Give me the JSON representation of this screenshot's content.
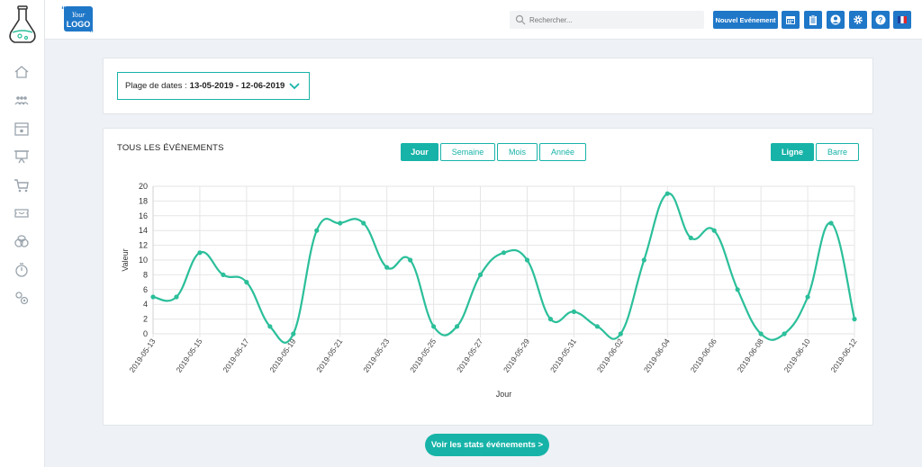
{
  "header": {
    "logo_text": "Your LOGO",
    "search_placeholder": "Rechercher...",
    "new_event_label": "Nouvel Evénement"
  },
  "icons": {
    "sidebar": [
      "home-icon",
      "users-icon",
      "calendar-star-icon",
      "presentation-icon",
      "cart-icon",
      "ticket-icon",
      "coins-icon",
      "stopwatch-icon",
      "settings-users-icon"
    ],
    "header": [
      "calendar-icon",
      "clipboard-icon",
      "user-circle-icon",
      "gear-icon",
      "help-icon",
      "flag-fr-icon"
    ]
  },
  "filters": {
    "date_label": "Plage de dates :",
    "date_value": "13-05-2019 - 12-06-2019"
  },
  "chart_section": {
    "title": "TOUS LES ÉVÉNEMENTS",
    "period_tabs": [
      "Jour",
      "Semaine",
      "Mois",
      "Année"
    ],
    "active_period": "Jour",
    "type_tabs": [
      "Ligne",
      "Barre"
    ],
    "active_type": "Ligne"
  },
  "stats_button_label": "Voir les stats événements >",
  "colors": {
    "accent": "#17b3a8",
    "line": "#2bbf9a",
    "primary_blue": "#1f77c8"
  },
  "chart_data": {
    "type": "line",
    "xlabel": "Jour",
    "ylabel": "Valeur",
    "ylim": [
      0,
      20
    ],
    "yticks": [
      0,
      2,
      4,
      6,
      8,
      10,
      12,
      14,
      16,
      18,
      20
    ],
    "grid": true,
    "x": [
      "2019-05-13",
      "2019-05-14",
      "2019-05-15",
      "2019-05-16",
      "2019-05-17",
      "2019-05-18",
      "2019-05-19",
      "2019-05-20",
      "2019-05-21",
      "2019-05-22",
      "2019-05-23",
      "2019-05-24",
      "2019-05-25",
      "2019-05-26",
      "2019-05-27",
      "2019-05-28",
      "2019-05-29",
      "2019-05-30",
      "2019-05-31",
      "2019-06-01",
      "2019-06-02",
      "2019-06-03",
      "2019-06-04",
      "2019-06-05",
      "2019-06-06",
      "2019-06-07",
      "2019-06-08",
      "2019-06-09",
      "2019-06-10",
      "2019-06-11",
      "2019-06-12"
    ],
    "x_tick_labels": [
      "2019-05-13",
      "2019-05-15",
      "2019-05-17",
      "2019-05-19",
      "2019-05-21",
      "2019-05-23",
      "2019-05-25",
      "2019-05-27",
      "2019-05-29",
      "2019-05-31",
      "2019-06-02",
      "2019-06-04",
      "2019-06-06",
      "2019-06-08",
      "2019-06-10",
      "2019-06-12"
    ],
    "values": [
      5,
      5,
      11,
      8,
      7,
      1,
      0,
      14,
      15,
      15,
      9,
      10,
      1,
      1,
      8,
      11,
      10,
      2,
      3,
      1,
      0,
      10,
      19,
      13,
      14,
      6,
      0,
      0,
      5,
      15,
      2
    ]
  }
}
